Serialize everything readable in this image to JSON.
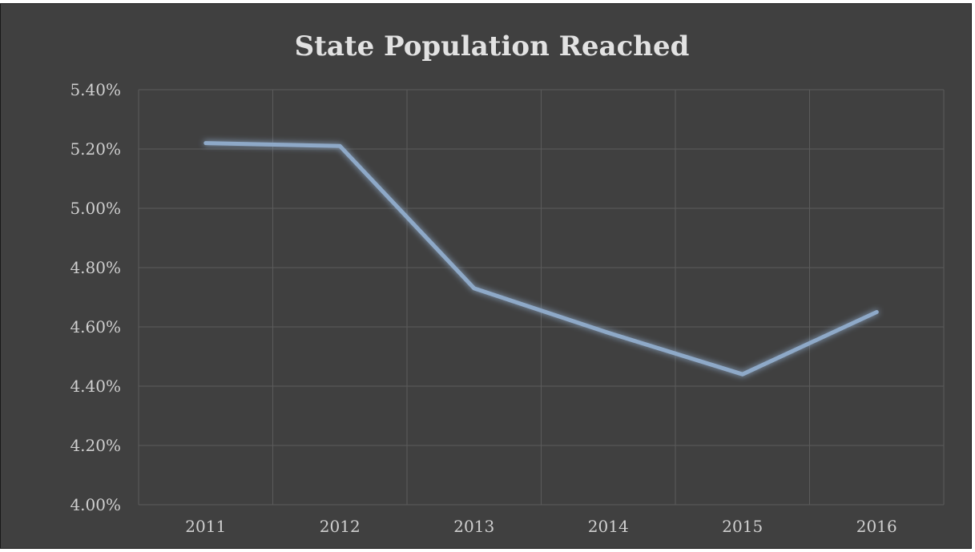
{
  "chart_data": {
    "type": "line",
    "title": "State Population Reached",
    "xlabel": "",
    "ylabel": "",
    "categories": [
      "2011",
      "2012",
      "2013",
      "2014",
      "2015",
      "2016"
    ],
    "series": [
      {
        "values": [
          0.0522,
          0.0521,
          0.0473,
          0.0458,
          0.0444,
          0.0465
        ]
      }
    ],
    "ylim": [
      0.04,
      0.054
    ],
    "yticks": [
      {
        "value": 0.054,
        "label": "5.40%"
      },
      {
        "value": 0.052,
        "label": "5.20%"
      },
      {
        "value": 0.05,
        "label": "5.00%"
      },
      {
        "value": 0.048,
        "label": "4.80%"
      },
      {
        "value": 0.046,
        "label": "4.60%"
      },
      {
        "value": 0.044,
        "label": "4.40%"
      },
      {
        "value": 0.042,
        "label": "4.20%"
      },
      {
        "value": 0.04,
        "label": "4.00%"
      }
    ],
    "grid": true,
    "legend": "none",
    "colors": {
      "background": "#404040",
      "line": "#8ea9c8",
      "grid": "#5b5b5b",
      "text": "#cfcfcf",
      "title": "#e2e2e2"
    }
  }
}
